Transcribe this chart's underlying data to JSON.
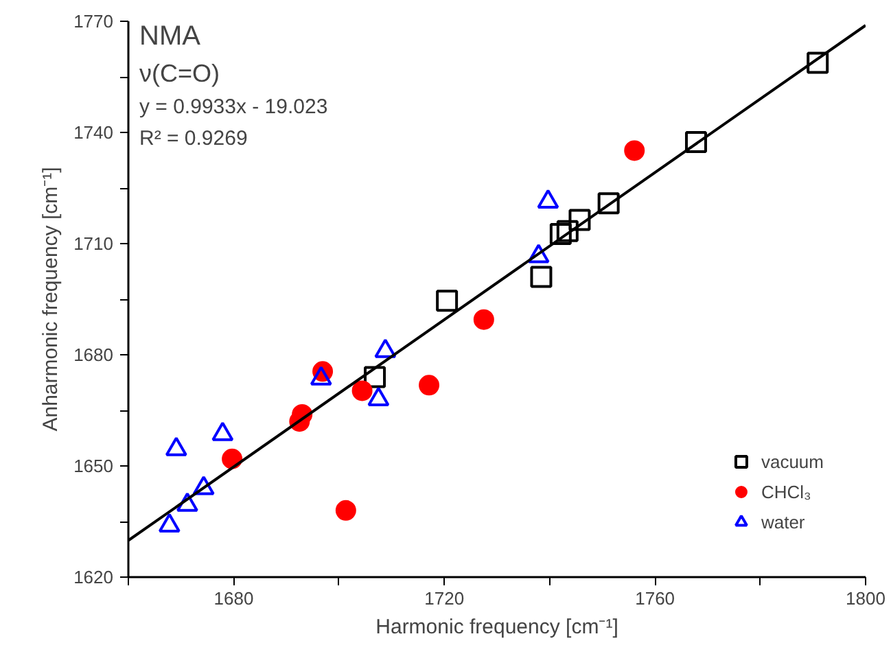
{
  "chart_data": {
    "type": "scatter",
    "xlabel": "Harmonic frequency [cm⁻¹]",
    "ylabel": "Anharmonic frequency [cm⁻¹]",
    "annotations": [
      "NMA",
      "ν(C=O)",
      "y = 0.9933x - 19.023",
      "R² = 0.9269"
    ],
    "xlim": [
      1660,
      1800
    ],
    "xticks": [
      {
        "value": 1660,
        "label": null
      },
      1680,
      {
        "value": 1700,
        "label": null
      },
      1720,
      {
        "value": 1740,
        "label": null
      },
      1760,
      {
        "value": 1780,
        "label": null
      },
      1800
    ],
    "ylim": [
      1620,
      1770
    ],
    "yticks": [
      1620,
      {
        "value": 1635,
        "label": null
      },
      1650,
      {
        "value": 1665,
        "label": null
      },
      1680,
      {
        "value": 1695,
        "label": null
      },
      1710,
      {
        "value": 1725,
        "label": null
      },
      1740,
      {
        "value": 1755,
        "label": null
      },
      1770
    ],
    "grid": false,
    "legend": "bottom right",
    "series": [
      {
        "name": "vacuum",
        "color": "#000000",
        "marker": "square",
        "x": [
          1790.9,
          1767.8,
          1751.2,
          1745.7,
          1743.4,
          1742.1,
          1738.4,
          1720.5,
          1706.8
        ],
        "values": [
          1758.8,
          1737.4,
          1720.9,
          1716.4,
          1713.4,
          1712.6,
          1701,
          1694.6,
          1674
        ]
      },
      {
        "name": "CHCl₃",
        "color": "#ff0000",
        "marker": "circle",
        "x": [
          1756.1,
          1727.5,
          1717.1,
          1704.4,
          1696.9,
          1693,
          1692.5,
          1679.7,
          1701.3
        ],
        "values": [
          1735.1,
          1689.5,
          1671.8,
          1670.3,
          1675.5,
          1663.9,
          1662,
          1651.9,
          1638
        ]
      },
      {
        "name": "water",
        "color": "#0000ff",
        "marker": "triangle",
        "x": [
          1708.8,
          1707.5,
          1696.6,
          1677.9,
          1669.1,
          1674.3,
          1671.2,
          1667.8,
          1739.7,
          1737.9
        ],
        "values": [
          1681,
          1668,
          1673.6,
          1658.6,
          1654.5,
          1644,
          1639.5,
          1633.9,
          1721.3,
          1706.6
        ]
      },
      {
        "type": "line",
        "color": "#000000",
        "line_style": "solid",
        "x": [
          1660,
          1800
        ],
        "values": [
          1629.9,
          1768.9
        ]
      }
    ]
  }
}
